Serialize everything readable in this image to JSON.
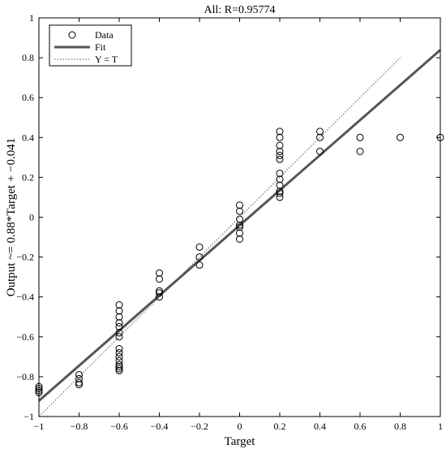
{
  "chart_data": {
    "type": "scatter",
    "title": "All: R=0.95774",
    "xlabel": "Target",
    "ylabel": "Output ~= 0.88*Target + −0.041",
    "xlim": [
      -1,
      1
    ],
    "ylim": [
      -1,
      1
    ],
    "xticks": [
      -1,
      -0.8,
      -0.6,
      -0.4,
      -0.2,
      0,
      0.2,
      0.4,
      0.6,
      0.8,
      1
    ],
    "xtick_labels": [
      "−1",
      "−0.8",
      "−0.6",
      "−0.4",
      "−0.2",
      "0",
      "0.2",
      "0.4",
      "0.6",
      "0.8",
      "1"
    ],
    "yticks": [
      -1,
      -0.8,
      -0.6,
      -0.4,
      -0.2,
      0,
      0.2,
      0.4,
      0.6,
      0.8,
      1
    ],
    "ytick_labels": [
      "−1",
      "−0.8",
      "−0.6",
      "−0.4",
      "−0.2",
      "0",
      "0.2",
      "0.4",
      "0.6",
      "0.8",
      "1"
    ],
    "grid": false,
    "legend": {
      "placement": "top-left",
      "entries": [
        {
          "label": "Data",
          "marker": "circle"
        },
        {
          "label": "Fit",
          "style": "solid"
        },
        {
          "label": "Y = T",
          "style": "dotted"
        }
      ]
    },
    "fit_line": {
      "slope": 0.88,
      "intercept": -0.041,
      "x_range": [
        -1,
        1
      ],
      "color": "#555555"
    },
    "identity_line": {
      "x_range": [
        -1,
        0.8
      ]
    },
    "series": [
      {
        "name": "Data",
        "x": [
          -1,
          -1,
          -1,
          -1,
          -0.8,
          -0.8,
          -0.8,
          -0.8,
          -0.6,
          -0.6,
          -0.6,
          -0.6,
          -0.6,
          -0.6,
          -0.6,
          -0.6,
          -0.6,
          -0.6,
          -0.6,
          -0.6,
          -0.6,
          -0.6,
          -0.6,
          -0.4,
          -0.4,
          -0.4,
          -0.4,
          -0.4,
          -0.2,
          -0.2,
          -0.2,
          0,
          0,
          0,
          0,
          0,
          0,
          0,
          0.2,
          0.2,
          0.2,
          0.2,
          0.2,
          0.2,
          0.2,
          0.2,
          0.2,
          0.2,
          0.2,
          0.2,
          0.4,
          0.4,
          0.4,
          0.6,
          0.6,
          0.8,
          1
        ],
        "y": [
          -0.86,
          -0.87,
          -0.88,
          -0.85,
          -0.79,
          -0.81,
          -0.83,
          -0.84,
          -0.44,
          -0.47,
          -0.5,
          -0.53,
          -0.55,
          -0.58,
          -0.6,
          -0.66,
          -0.68,
          -0.7,
          -0.72,
          -0.74,
          -0.75,
          -0.76,
          -0.77,
          -0.28,
          -0.31,
          -0.37,
          -0.38,
          -0.4,
          -0.15,
          -0.2,
          -0.24,
          0.06,
          0.03,
          -0.01,
          -0.04,
          -0.05,
          -0.08,
          -0.11,
          0.43,
          0.4,
          0.36,
          0.33,
          0.31,
          0.29,
          0.22,
          0.19,
          0.16,
          0.13,
          0.12,
          0.1,
          0.43,
          0.4,
          0.33,
          0.4,
          0.33,
          0.4,
          0.4
        ]
      }
    ]
  }
}
